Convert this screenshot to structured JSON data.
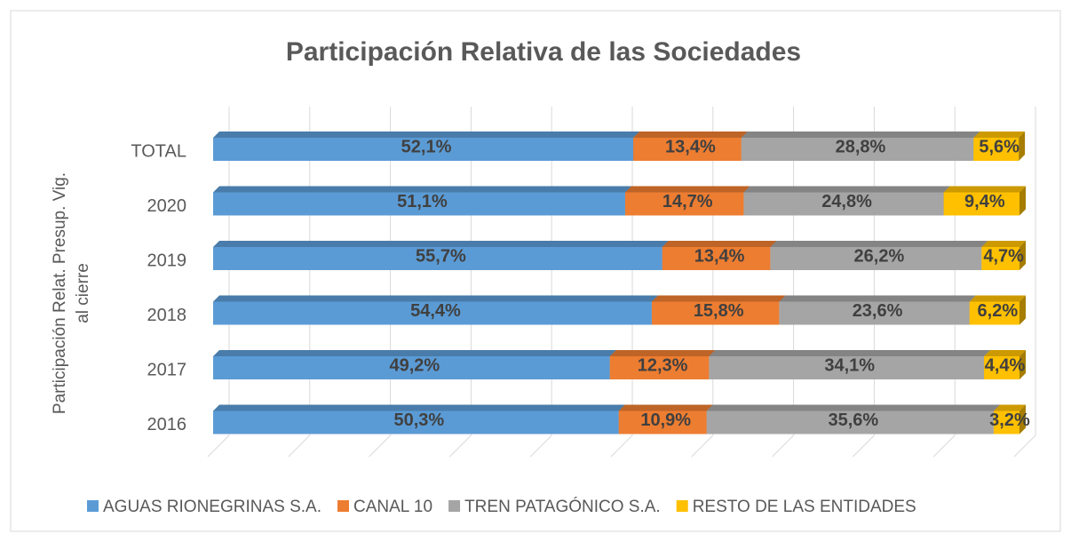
{
  "chart_data": {
    "type": "bar",
    "orientation": "horizontal",
    "stacked": true,
    "title": "Participación Relativa de las Sociedades",
    "y_label": [
      "Participación Relat. Presup. Vig.",
      "al cierre"
    ],
    "categories": [
      "TOTAL",
      "2020",
      "2019",
      "2018",
      "2017",
      "2016"
    ],
    "xlim": [
      0,
      100
    ],
    "xticks": [
      0,
      10,
      20,
      30,
      40,
      50,
      60,
      70,
      80,
      90,
      100
    ],
    "grid": true,
    "legend": "bottom",
    "series": [
      {
        "name": "AGUAS RIONEGRINAS S.A.",
        "color": "#5b9bd5",
        "values": [
          52.1,
          51.1,
          55.7,
          54.4,
          49.2,
          50.3
        ],
        "value_labels": [
          "52,1%",
          "51,1%",
          "55,7%",
          "54,4%",
          "49,2%",
          "50,3%"
        ]
      },
      {
        "name": "CANAL 10",
        "color": "#ed7d31",
        "values": [
          13.4,
          14.7,
          13.4,
          15.8,
          12.3,
          10.9
        ],
        "value_labels": [
          "13,4%",
          "14,7%",
          "13,4%",
          "15,8%",
          "12,3%",
          "10,9%"
        ]
      },
      {
        "name": "TREN PATAGÓNICO S.A.",
        "color": "#a5a5a5",
        "values": [
          28.8,
          24.8,
          26.2,
          23.6,
          34.1,
          35.6
        ],
        "value_labels": [
          "28,8%",
          "24,8%",
          "26,2%",
          "23,6%",
          "34,1%",
          "35,6%"
        ]
      },
      {
        "name": "RESTO DE LAS ENTIDADES",
        "color": "#ffc000",
        "values": [
          5.6,
          9.4,
          4.7,
          6.2,
          4.4,
          3.2
        ],
        "value_labels": [
          "5,6%",
          "9,4%",
          "4,7%",
          "6,2%",
          "4,4%",
          "3,2%"
        ]
      }
    ]
  }
}
